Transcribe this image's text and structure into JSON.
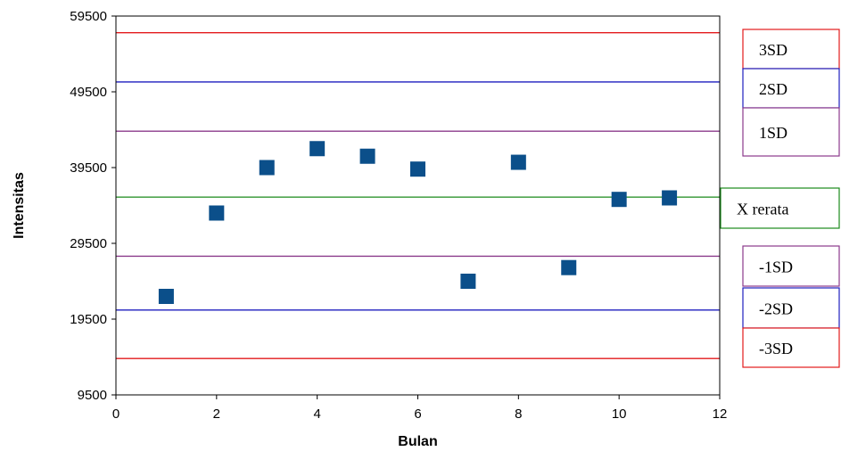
{
  "chart_data": {
    "type": "scatter",
    "xlabel": "Bulan",
    "ylabel": "Intensitas",
    "xlim": [
      0,
      12
    ],
    "ylim": [
      9500,
      59500
    ],
    "xticks": [
      0,
      2,
      4,
      6,
      8,
      10,
      12
    ],
    "yticks": [
      9500,
      19500,
      29500,
      39500,
      49500,
      59500
    ],
    "xtick_labels": [
      "0",
      "2",
      "4",
      "6",
      "8",
      "10",
      "12"
    ],
    "ytick_labels": [
      "9500",
      "19500",
      "29500",
      "39500",
      "49500",
      "59500"
    ],
    "grid": false,
    "series": [
      {
        "marker": "square",
        "color": "#0b4f8a",
        "x": [
          1,
          2,
          3,
          4,
          5,
          6,
          7,
          8,
          9,
          10,
          11
        ],
        "y": [
          22500,
          33500,
          39500,
          42000,
          41000,
          39300,
          24500,
          40200,
          26300,
          35300,
          35500
        ]
      }
    ],
    "reference_lines": [
      {
        "label": "3SD",
        "value": 57300,
        "color": "#e31a1c"
      },
      {
        "label": "2SD",
        "value": 50800,
        "color": "#1f1fbf"
      },
      {
        "label": "1SD",
        "value": 44300,
        "color": "#8b3a8b"
      },
      {
        "label": "X rerata",
        "value": 35600,
        "color": "#1a8a1a"
      },
      {
        "label": "-1SD",
        "value": 27800,
        "color": "#8b3a8b"
      },
      {
        "label": "-2SD",
        "value": 20700,
        "color": "#1f1fbf"
      },
      {
        "label": "-3SD",
        "value": 14300,
        "color": "#e31a1c"
      }
    ]
  }
}
